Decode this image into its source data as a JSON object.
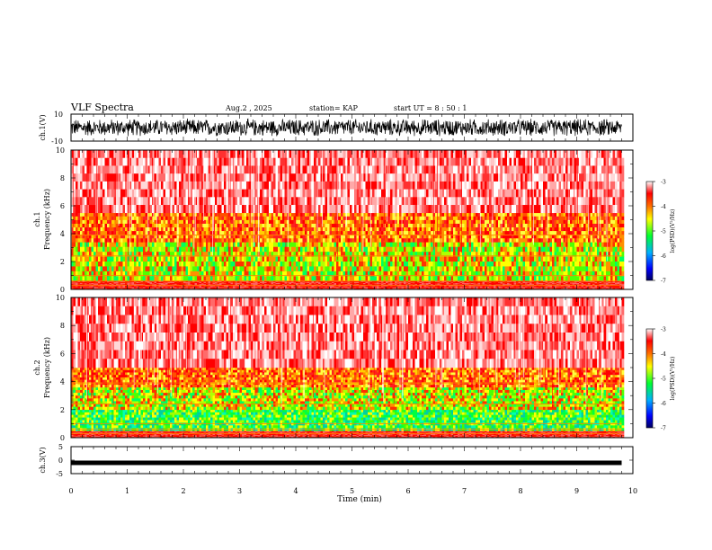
{
  "header": {
    "title": "VLF Spectra",
    "date": "Aug.2 , 2025",
    "station": "station= KAP",
    "start": "start UT = 8 : 50 : 1"
  },
  "chart_data": [
    {
      "type": "line",
      "panel": "ch1-waveform",
      "ylabel": "ch.1(V)",
      "ylim": [
        -10,
        10
      ],
      "yticks": [
        "10",
        "-10"
      ],
      "x_range": [
        0,
        9.8
      ],
      "description_values": "dense noise-like waveform spanning roughly -7 to +7 V"
    },
    {
      "type": "heatmap",
      "panel": "ch1-spectrogram",
      "ylabel_top": "ch.1",
      "ylabel": "Frequency (kHz)",
      "ylim": [
        0,
        10
      ],
      "yticks": [
        "0",
        "2",
        "4",
        "6",
        "8",
        "10"
      ],
      "bands": [
        {
          "from": 0,
          "to": 0.6,
          "level": "red"
        },
        {
          "from": 0.6,
          "to": 3.4,
          "level": "green-yellow"
        },
        {
          "from": 3.4,
          "to": 5.5,
          "level": "red-yellow"
        },
        {
          "from": 5.5,
          "to": 10,
          "level": "red-white"
        }
      ],
      "colorbar": {
        "label": "log(PSD)(V²/Hz)",
        "min": -7,
        "max": -3,
        "ticks": [
          "-3",
          "-4",
          "-5",
          "-6",
          "-7"
        ]
      }
    },
    {
      "type": "heatmap",
      "panel": "ch2-spectrogram",
      "ylabel_top": "ch.2",
      "ylabel": "Frequency (kHz)",
      "ylim": [
        0,
        10
      ],
      "yticks": [
        "0",
        "2",
        "4",
        "6",
        "8",
        "10"
      ],
      "bands": [
        {
          "from": 0,
          "to": 0.5,
          "level": "red"
        },
        {
          "from": 0.5,
          "to": 2.0,
          "level": "green"
        },
        {
          "from": 2.0,
          "to": 3.6,
          "level": "green-yellow"
        },
        {
          "from": 3.6,
          "to": 5.0,
          "level": "red-yellow"
        },
        {
          "from": 5.0,
          "to": 10,
          "level": "red-white"
        }
      ],
      "colorbar": {
        "label": "log(PSD)(V²/Hz)",
        "min": -7,
        "max": -3,
        "ticks": [
          "-3",
          "-4",
          "-5",
          "-6",
          "-7"
        ]
      }
    },
    {
      "type": "line",
      "panel": "ch3-waveform",
      "ylabel": "ch.3(V)",
      "ylim": [
        -5,
        5
      ],
      "yticks": [
        "5",
        "0",
        "-5"
      ],
      "x_range": [
        0,
        9.8
      ],
      "level_v": -1.0
    }
  ],
  "xaxis": {
    "label": "Time (min)",
    "range": [
      0,
      10
    ],
    "ticks": [
      "0",
      "1",
      "2",
      "3",
      "4",
      "5",
      "6",
      "7",
      "8",
      "9",
      "10"
    ]
  }
}
